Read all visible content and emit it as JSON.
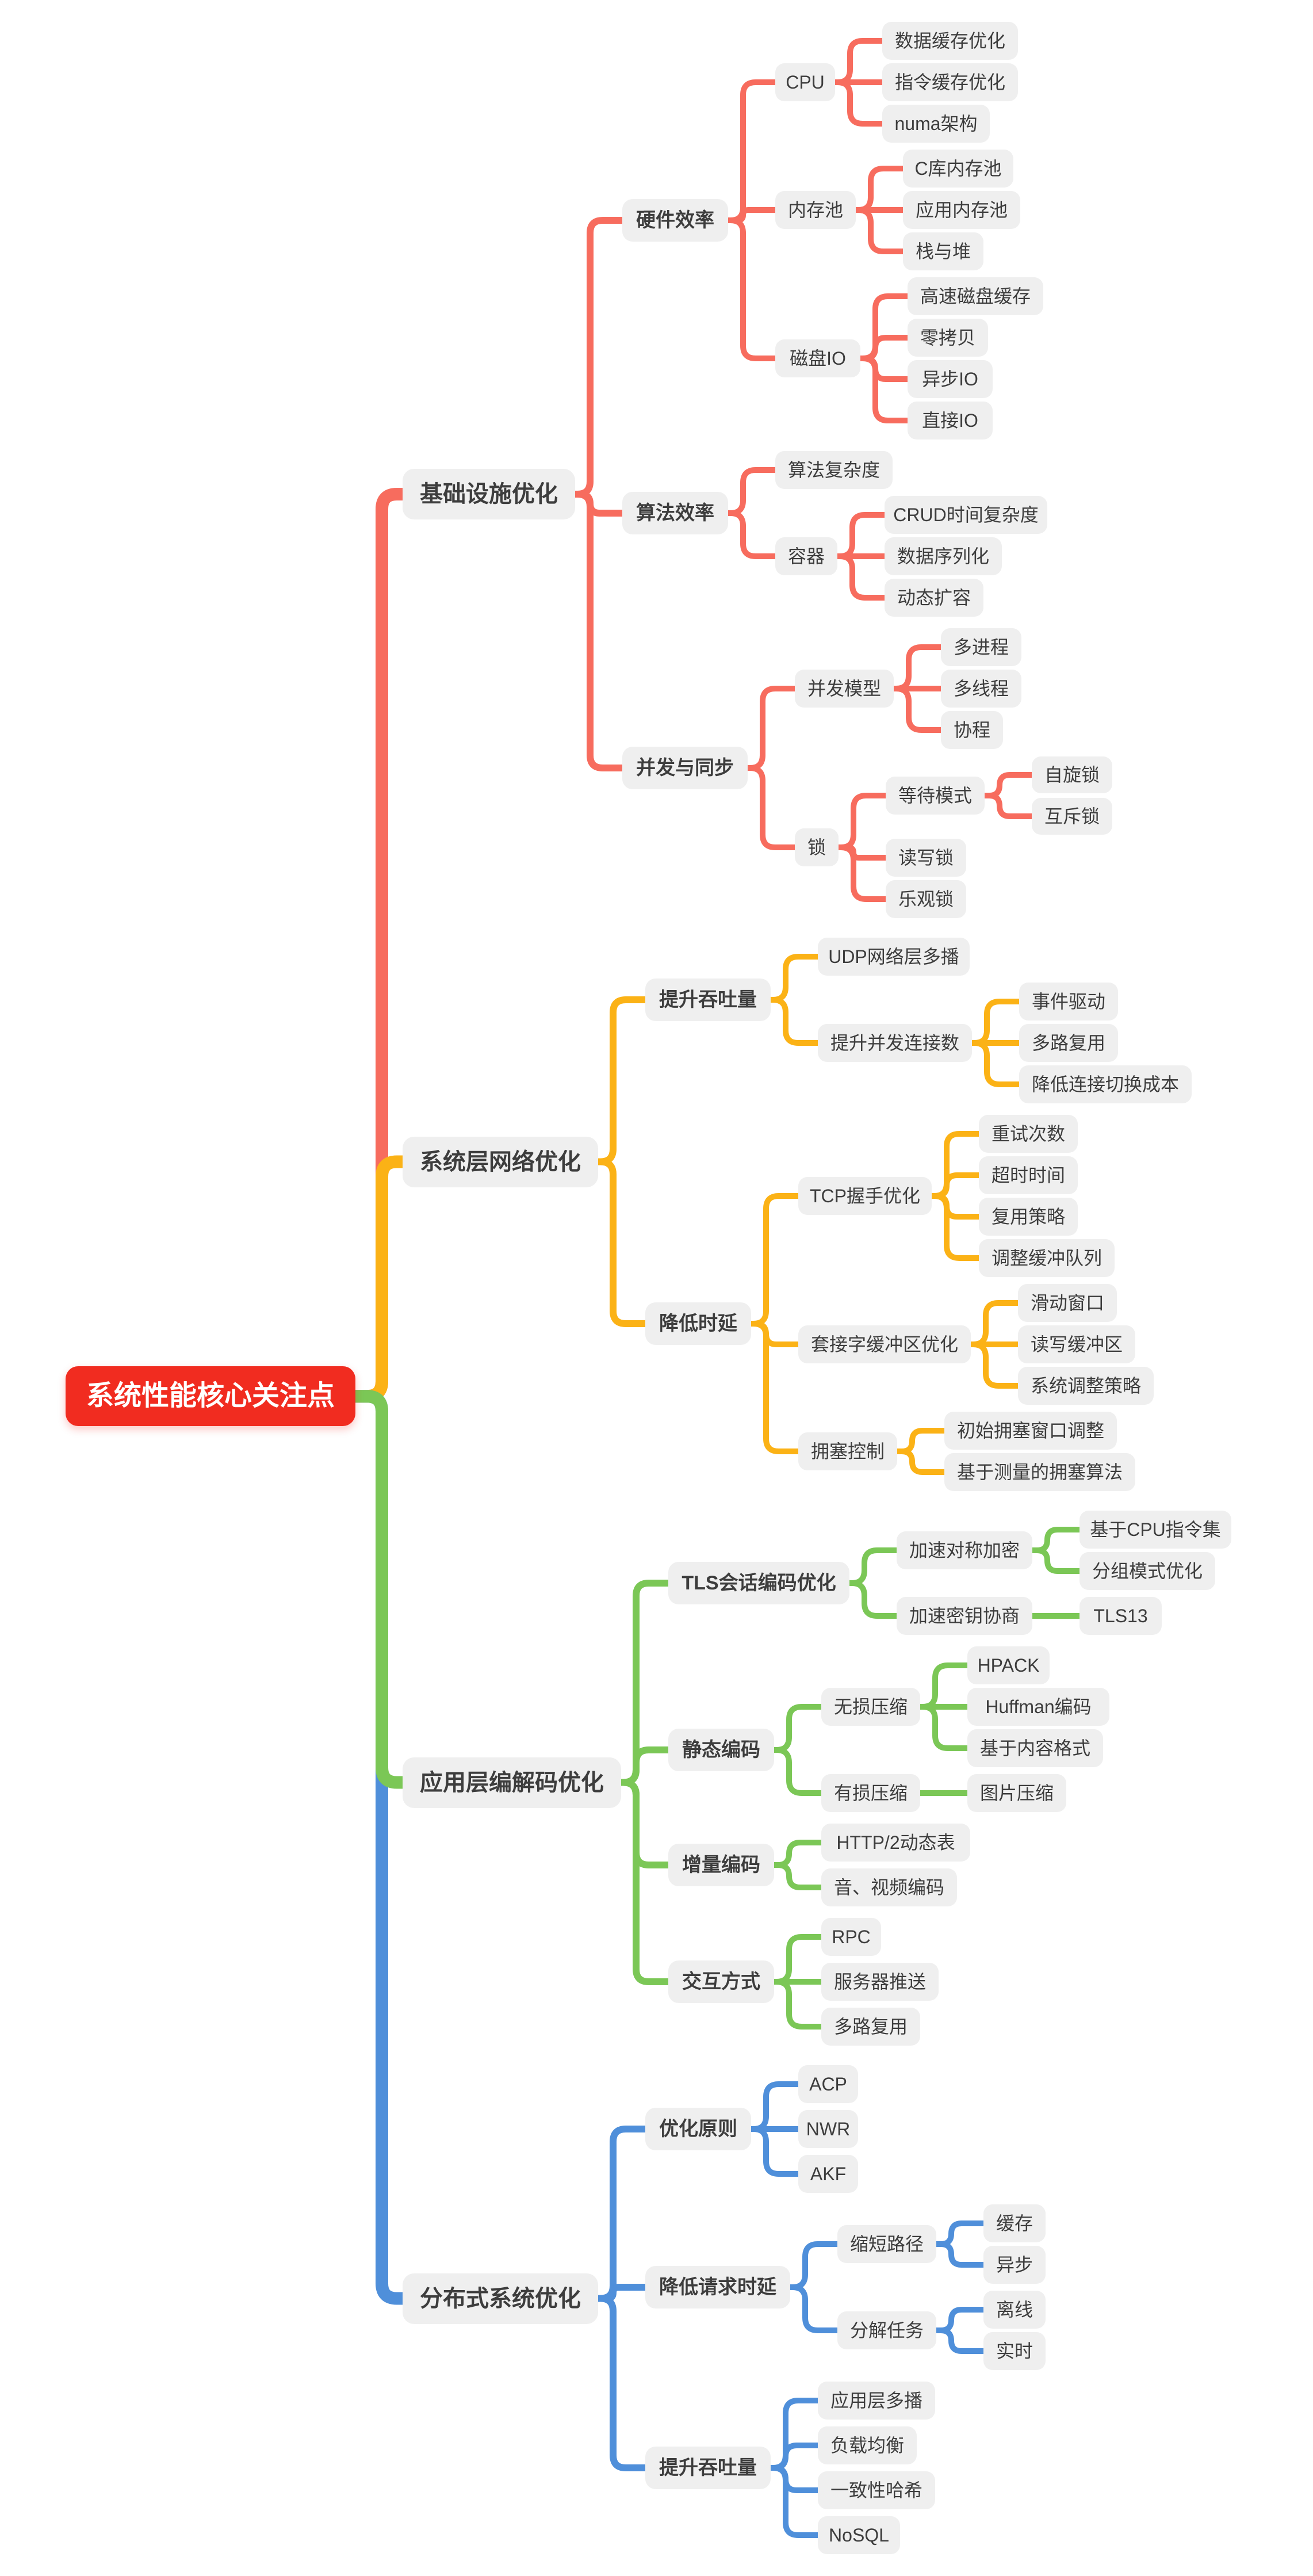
{
  "title": "系统性能核心关注点",
  "colors": {
    "canvas_bg": "#ffffff",
    "root_bg": "#f12c20",
    "root_text": "#ffffff",
    "node_bg": "#efefef",
    "node_text": "#3d3d3d",
    "branch_red": "#f76c5e",
    "branch_yellow": "#fbb216",
    "branch_green": "#7bc756",
    "branch_blue": "#4f8fda"
  },
  "tree": {
    "label": "系统性能核心关注点",
    "children": [
      {
        "label": "基础设施优化",
        "color": "#f76c5e",
        "children": [
          {
            "label": "硬件效率",
            "children": [
              {
                "label": "CPU",
                "children": [
                  {
                    "label": "数据缓存优化"
                  },
                  {
                    "label": "指令缓存优化"
                  },
                  {
                    "label": "numa架构"
                  }
                ]
              },
              {
                "label": "内存池",
                "children": [
                  {
                    "label": "C库内存池"
                  },
                  {
                    "label": "应用内存池"
                  },
                  {
                    "label": "栈与堆"
                  }
                ]
              },
              {
                "label": "磁盘IO",
                "children": [
                  {
                    "label": "高速磁盘缓存"
                  },
                  {
                    "label": "零拷贝"
                  },
                  {
                    "label": "异步IO"
                  },
                  {
                    "label": "直接IO"
                  }
                ]
              }
            ]
          },
          {
            "label": "算法效率",
            "children": [
              {
                "label": "算法复杂度"
              },
              {
                "label": "容器",
                "children": [
                  {
                    "label": "CRUD时间复杂度"
                  },
                  {
                    "label": "数据序列化"
                  },
                  {
                    "label": "动态扩容"
                  }
                ]
              }
            ]
          },
          {
            "label": "并发与同步",
            "children": [
              {
                "label": "并发模型",
                "children": [
                  {
                    "label": "多进程"
                  },
                  {
                    "label": "多线程"
                  },
                  {
                    "label": "协程"
                  }
                ]
              },
              {
                "label": "锁",
                "children": [
                  {
                    "label": "等待模式",
                    "children": [
                      {
                        "label": "自旋锁"
                      },
                      {
                        "label": "互斥锁"
                      }
                    ]
                  },
                  {
                    "label": "读写锁"
                  },
                  {
                    "label": "乐观锁"
                  }
                ]
              }
            ]
          }
        ]
      },
      {
        "label": "系统层网络优化",
        "color": "#fbb216",
        "children": [
          {
            "label": "提升吞吐量",
            "children": [
              {
                "label": "UDP网络层多播"
              },
              {
                "label": "提升并发连接数",
                "children": [
                  {
                    "label": "事件驱动"
                  },
                  {
                    "label": "多路复用"
                  },
                  {
                    "label": "降低连接切换成本"
                  }
                ]
              }
            ]
          },
          {
            "label": "降低时延",
            "children": [
              {
                "label": "TCP握手优化",
                "children": [
                  {
                    "label": "重试次数"
                  },
                  {
                    "label": "超时时间"
                  },
                  {
                    "label": "复用策略"
                  },
                  {
                    "label": "调整缓冲队列"
                  }
                ]
              },
              {
                "label": "套接字缓冲区优化",
                "children": [
                  {
                    "label": "滑动窗口"
                  },
                  {
                    "label": "读写缓冲区"
                  },
                  {
                    "label": "系统调整策略"
                  }
                ]
              },
              {
                "label": "拥塞控制",
                "children": [
                  {
                    "label": "初始拥塞窗口调整"
                  },
                  {
                    "label": "基于测量的拥塞算法"
                  }
                ]
              }
            ]
          }
        ]
      },
      {
        "label": "应用层编解码优化",
        "color": "#7bc756",
        "children": [
          {
            "label": "TLS会话编码优化",
            "children": [
              {
                "label": "加速对称加密",
                "children": [
                  {
                    "label": "基于CPU指令集"
                  },
                  {
                    "label": "分组模式优化"
                  }
                ]
              },
              {
                "label": "加速密钥协商",
                "children": [
                  {
                    "label": "TLS13"
                  }
                ]
              }
            ]
          },
          {
            "label": "静态编码",
            "children": [
              {
                "label": "无损压缩",
                "children": [
                  {
                    "label": "HPACK"
                  },
                  {
                    "label": "Huffman编码"
                  },
                  {
                    "label": "基于内容格式"
                  }
                ]
              },
              {
                "label": "有损压缩",
                "children": [
                  {
                    "label": "图片压缩"
                  }
                ]
              }
            ]
          },
          {
            "label": "增量编码",
            "children": [
              {
                "label": "HTTP/2动态表"
              },
              {
                "label": "音、视频编码"
              }
            ]
          },
          {
            "label": "交互方式",
            "children": [
              {
                "label": "RPC"
              },
              {
                "label": "服务器推送"
              },
              {
                "label": "多路复用"
              }
            ]
          }
        ]
      },
      {
        "label": "分布式系统优化",
        "color": "#4f8fda",
        "children": [
          {
            "label": "优化原则",
            "children": [
              {
                "label": "ACP"
              },
              {
                "label": "NWR"
              },
              {
                "label": "AKF"
              }
            ]
          },
          {
            "label": "降低请求时延",
            "children": [
              {
                "label": "缩短路径",
                "children": [
                  {
                    "label": "缓存"
                  },
                  {
                    "label": "异步"
                  }
                ]
              },
              {
                "label": "分解任务",
                "children": [
                  {
                    "label": "离线"
                  },
                  {
                    "label": "实时"
                  }
                ]
              }
            ]
          },
          {
            "label": "提升吞吐量",
            "children": [
              {
                "label": "应用层多播"
              },
              {
                "label": "负载均衡"
              },
              {
                "label": "一致性哈希"
              },
              {
                "label": "NoSQL"
              }
            ]
          }
        ]
      }
    ]
  }
}
